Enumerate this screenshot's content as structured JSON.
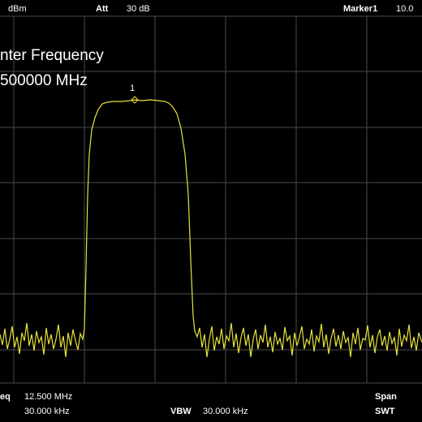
{
  "header": {
    "ref_unit": "dBm",
    "att_label": "Att",
    "att_value": "30 dB",
    "marker_label": "Marker1",
    "marker_value": "10.0"
  },
  "overlay": {
    "line1": "nter Frequency",
    "line2": "500000 MHz"
  },
  "marker": {
    "label": "1"
  },
  "footer": {
    "freq_label": "eq",
    "freq_value": "12.500 MHz",
    "rbw_value": "30.000 kHz",
    "vbw_label": "VBW",
    "vbw_value": "30.000 kHz",
    "span_label": "Span",
    "swt_label": "SWT"
  }
}
